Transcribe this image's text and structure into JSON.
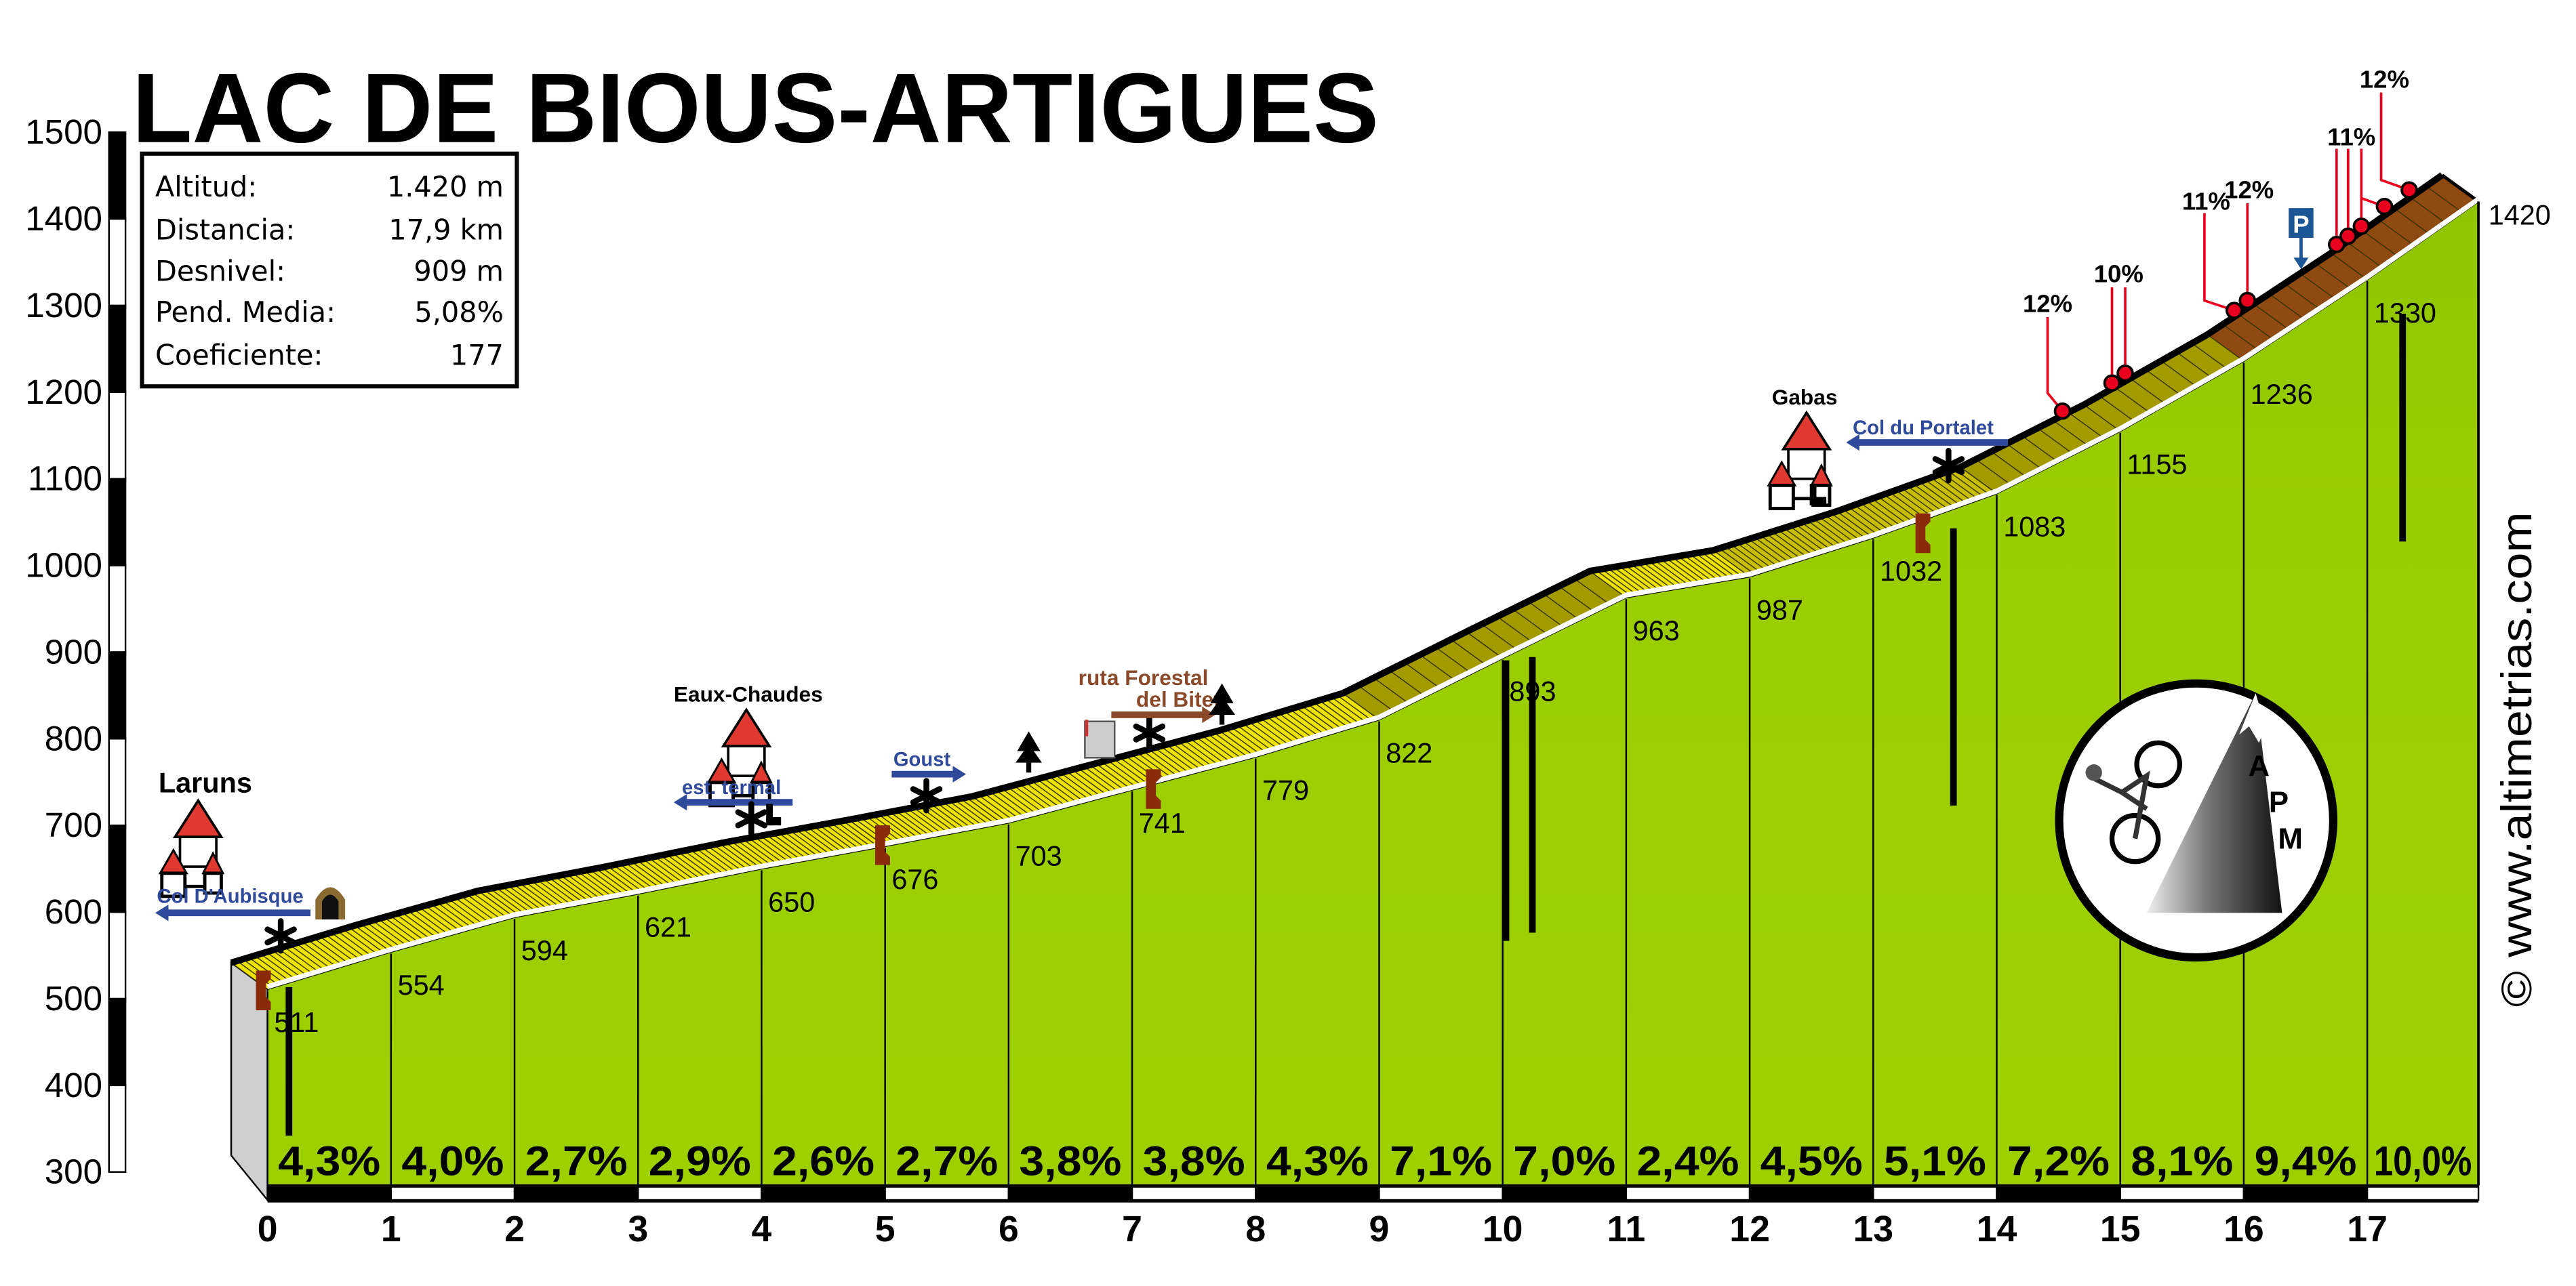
{
  "chart_data": {
    "type": "area",
    "title": "LAC DE BIOUS-ARTIGUES",
    "xlabel": "",
    "ylabel": "",
    "x_ticks": [
      "0",
      "1",
      "2",
      "3",
      "4",
      "5",
      "6",
      "7",
      "8",
      "9",
      "10",
      "11",
      "12",
      "13",
      "14",
      "15",
      "16",
      "17"
    ],
    "y_ticks": [
      "300",
      "400",
      "500",
      "600",
      "700",
      "800",
      "900",
      "1000",
      "1100",
      "1200",
      "1300",
      "1400",
      "1500"
    ],
    "ylim": [
      300,
      1500
    ],
    "xlim": [
      0,
      17.9
    ],
    "profile": {
      "km": [
        0,
        1,
        2,
        3,
        4,
        5,
        6,
        7,
        8,
        9,
        10,
        11,
        12,
        13,
        14,
        15,
        16,
        17,
        17.9
      ],
      "altitude": [
        511,
        554,
        594,
        621,
        650,
        676,
        703,
        741,
        779,
        822,
        893,
        963,
        987,
        1032,
        1083,
        1155,
        1236,
        1330,
        1420
      ],
      "altitude_labels": [
        "511",
        "554",
        "594",
        "621",
        "650",
        "676",
        "703",
        "741",
        "779",
        "822",
        "893",
        "963",
        "987",
        "1032",
        "1083",
        "1155",
        "1236",
        "1330",
        "1420"
      ]
    },
    "segment_gradients": [
      "4,3%",
      "4,0%",
      "2,7%",
      "2,9%",
      "2,6%",
      "2,7%",
      "3,8%",
      "3,8%",
      "4,3%",
      "7,1%",
      "7,0%",
      "2,4%",
      "4,5%",
      "5,1%",
      "7,2%",
      "8,1%",
      "9,4%",
      "10,0%"
    ],
    "segment_gradient_values": [
      4.3,
      4.0,
      2.7,
      2.9,
      2.6,
      2.7,
      3.8,
      3.8,
      4.3,
      7.1,
      7.0,
      2.4,
      4.5,
      5.1,
      7.2,
      8.1,
      9.4,
      10.0
    ],
    "steep_ramps": [
      "12%",
      "10%",
      "11%",
      "12%",
      "11%",
      "12%"
    ],
    "grid": false,
    "colors": {
      "face": "#9acd00",
      "band_easy": "#ece400",
      "band_medium": "#c8be00",
      "band_hard": "#a39a00",
      "band_steep": "#8e4a10",
      "ramp_marker": "#e8001c"
    }
  },
  "info_box": {
    "rows": [
      {
        "label": "Altitud:",
        "value": "1.420 m"
      },
      {
        "label": "Distancia:",
        "value": "17,9 km"
      },
      {
        "label": "Desnivel:",
        "value": "909 m"
      },
      {
        "label": "Pend. Media:",
        "value": "5,08%"
      },
      {
        "label": "Coeficiente:",
        "value": "177"
      }
    ]
  },
  "places": {
    "laruns": "Laruns",
    "eaux_chaudes": "Eaux-Chaudes",
    "gabas": "Gabas"
  },
  "directions": {
    "col_aubisque": "Col D'Aubisque",
    "est_termal": "est. termal",
    "goust": "Goust",
    "ruta_forestal_1": "ruta Forestal",
    "ruta_forestal_2": "del Bitet",
    "col_portalet": "Col du Portalet"
  },
  "parking": "P",
  "logo": "APM",
  "copyright": "© www.altimetrias.com"
}
